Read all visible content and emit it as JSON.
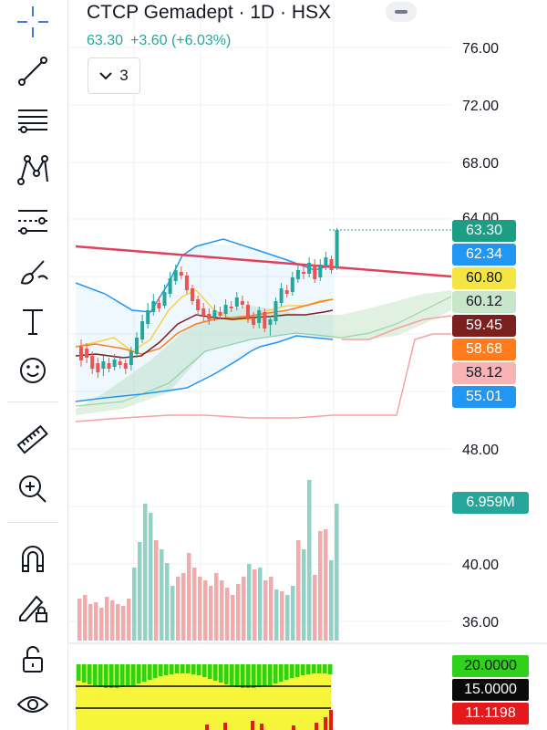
{
  "header": {
    "title": "CTCP Gemadept · 1D · HSX",
    "last": "63.30",
    "change": "+3.60 (+6.03%)",
    "indicator_count": "3"
  },
  "toolbar": {
    "tools": [
      "crosshair-icon",
      "trend-line-icon",
      "fib-lines-icon",
      "pattern-icon",
      "forecast-icon",
      "brush-icon",
      "text-icon",
      "emoji-icon",
      "ruler-icon",
      "zoom-in-icon",
      "magnet-icon",
      "lock-pencil-icon",
      "unlock-icon",
      "eye-icon"
    ]
  },
  "price_axis": [
    "76.00",
    "72.00",
    "68.00",
    "48.00",
    "40.00",
    "36.00"
  ],
  "partial_tick": "64.00",
  "price_tags": [
    {
      "label": "63.30",
      "bg": "#1b9e84",
      "fg": "#ffffff"
    },
    {
      "label": "62.34",
      "bg": "#2196f3",
      "fg": "#ffffff"
    },
    {
      "label": "60.80",
      "bg": "#f5e542",
      "fg": "#131722"
    },
    {
      "label": "60.12",
      "bg": "#c8e6c9",
      "fg": "#131722"
    },
    {
      "label": "59.45",
      "bg": "#7b1f1f",
      "fg": "#ffffff"
    },
    {
      "label": "58.68",
      "bg": "#ff7b1c",
      "fg": "#ffffff"
    },
    {
      "label": "58.12",
      "bg": "#f8b4b4",
      "fg": "#131722"
    },
    {
      "label": "55.01",
      "bg": "#2196f3",
      "fg": "#ffffff"
    }
  ],
  "volume_tag": {
    "label": "6.959M",
    "bg": "#26a69a",
    "fg": "#ffffff"
  },
  "oscillator_tags": [
    {
      "label": "20.0000",
      "bg": "#2fd11b",
      "fg": "#131722"
    },
    {
      "label": "15.0000",
      "bg": "#0a0a0a",
      "fg": "#ffffff"
    },
    {
      "label": "11.1198",
      "bg": "#e3191c",
      "fg": "#ffffff"
    }
  ],
  "chart_data": {
    "type": "candlestick",
    "symbol": "CTCP Gemadept",
    "interval": "1D",
    "exchange": "HSX",
    "last_price": 63.3,
    "indicator_levels": [
      62.34,
      60.8,
      60.12,
      59.45,
      58.68,
      58.12,
      55.01
    ],
    "volume_last": "6.959M",
    "oscillator_levels": [
      20.0,
      15.0,
      11.1198
    ],
    "colors": {
      "up": "#26a69a",
      "down": "#ef5350",
      "resistance": "#e0405a",
      "bollinger": "#2196f3",
      "cloud": "#b9dcbf"
    }
  }
}
